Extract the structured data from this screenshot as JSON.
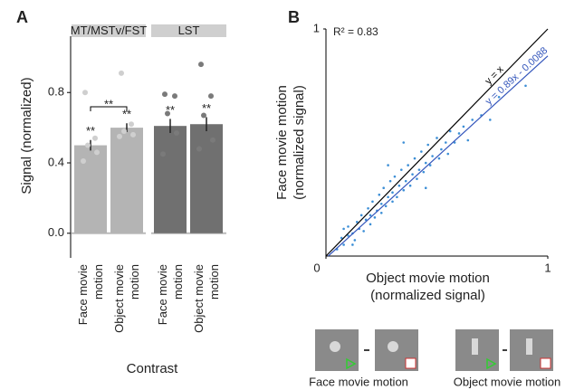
{
  "chart_data": [
    {
      "type": "bar",
      "panel": "A",
      "ylabel": "Signal (normalized)",
      "xlabel": "Contrast",
      "facets": [
        "MT/MSTv/FST",
        "LST"
      ],
      "facet_of_bar": [
        0,
        0,
        1,
        1
      ],
      "categories": [
        "Face movie motion",
        "Object movie motion",
        "Face movie motion",
        "Object movie motion"
      ],
      "values": [
        0.5,
        0.6,
        0.61,
        0.62
      ],
      "errors": [
        0.03,
        0.025,
        0.04,
        0.04
      ],
      "points": [
        [
          0.8,
          0.54,
          0.5,
          0.46,
          0.41
        ],
        [
          0.91,
          0.62,
          0.58,
          0.56,
          0.55
        ],
        [
          0.79,
          0.78,
          0.68,
          0.57,
          0.45
        ],
        [
          0.96,
          0.78,
          0.67,
          0.53,
          0.48
        ]
      ],
      "colors": [
        "#b4b4b4",
        "#b4b4b4",
        "#707070",
        "#707070"
      ],
      "point_colors": [
        "#cfcfcf",
        "#cfcfcf",
        "#7a7a7a",
        "#7a7a7a"
      ],
      "significance": [
        "**",
        "**",
        "**",
        "**"
      ],
      "bracket_label": "**",
      "ylim": [
        -0.14,
        1.12
      ],
      "yticks": [
        {
          "value": 0,
          "label": "0.0"
        },
        0.4,
        0.8
      ]
    },
    {
      "type": "scatter",
      "panel": "B",
      "annotation": "R² = 0.83",
      "xlabel": [
        "Object movie motion",
        "(normalized signal)"
      ],
      "ylabel": [
        "Face movie motion",
        "(normalized signal)"
      ],
      "color": "#3d8fd6",
      "x": [
        0.05,
        0.07,
        0.08,
        0.1,
        0.1,
        0.12,
        0.13,
        0.14,
        0.15,
        0.16,
        0.17,
        0.18,
        0.19,
        0.2,
        0.2,
        0.21,
        0.22,
        0.23,
        0.24,
        0.25,
        0.25,
        0.26,
        0.27,
        0.28,
        0.29,
        0.3,
        0.3,
        0.31,
        0.32,
        0.33,
        0.34,
        0.35,
        0.36,
        0.37,
        0.38,
        0.39,
        0.4,
        0.41,
        0.42,
        0.43,
        0.44,
        0.45,
        0.46,
        0.47,
        0.48,
        0.5,
        0.51,
        0.52,
        0.54,
        0.55,
        0.56,
        0.58,
        0.6,
        0.62,
        0.64,
        0.66,
        0.7,
        0.74,
        0.78,
        0.9,
        0.08,
        0.12,
        0.35,
        0.45,
        0.28
      ],
      "values": [
        0.03,
        0.08,
        0.05,
        0.09,
        0.13,
        0.1,
        0.07,
        0.15,
        0.12,
        0.18,
        0.11,
        0.16,
        0.21,
        0.14,
        0.18,
        0.24,
        0.17,
        0.2,
        0.27,
        0.19,
        0.23,
        0.3,
        0.22,
        0.26,
        0.33,
        0.24,
        0.28,
        0.35,
        0.26,
        0.31,
        0.38,
        0.29,
        0.33,
        0.4,
        0.31,
        0.36,
        0.43,
        0.34,
        0.38,
        0.46,
        0.37,
        0.41,
        0.49,
        0.4,
        0.44,
        0.52,
        0.43,
        0.47,
        0.5,
        0.45,
        0.55,
        0.5,
        0.54,
        0.57,
        0.51,
        0.6,
        0.62,
        0.6,
        0.7,
        0.75,
        0.12,
        0.05,
        0.5,
        0.3,
        0.4
      ],
      "lines": [
        {
          "label": "y = x",
          "slope": 1,
          "intercept": 0,
          "color": "#000000"
        },
        {
          "label": "y = 0.89x - 0.0088",
          "slope": 0.89,
          "intercept": -0.0088,
          "color": "#3355bb"
        }
      ],
      "xlim": [
        0,
        1
      ],
      "ylim": [
        0,
        1
      ],
      "xticks": [
        0,
        1
      ],
      "yticks": [
        1
      ],
      "stimulus_labels": [
        "Face movie motion",
        "Object movie motion"
      ]
    }
  ]
}
